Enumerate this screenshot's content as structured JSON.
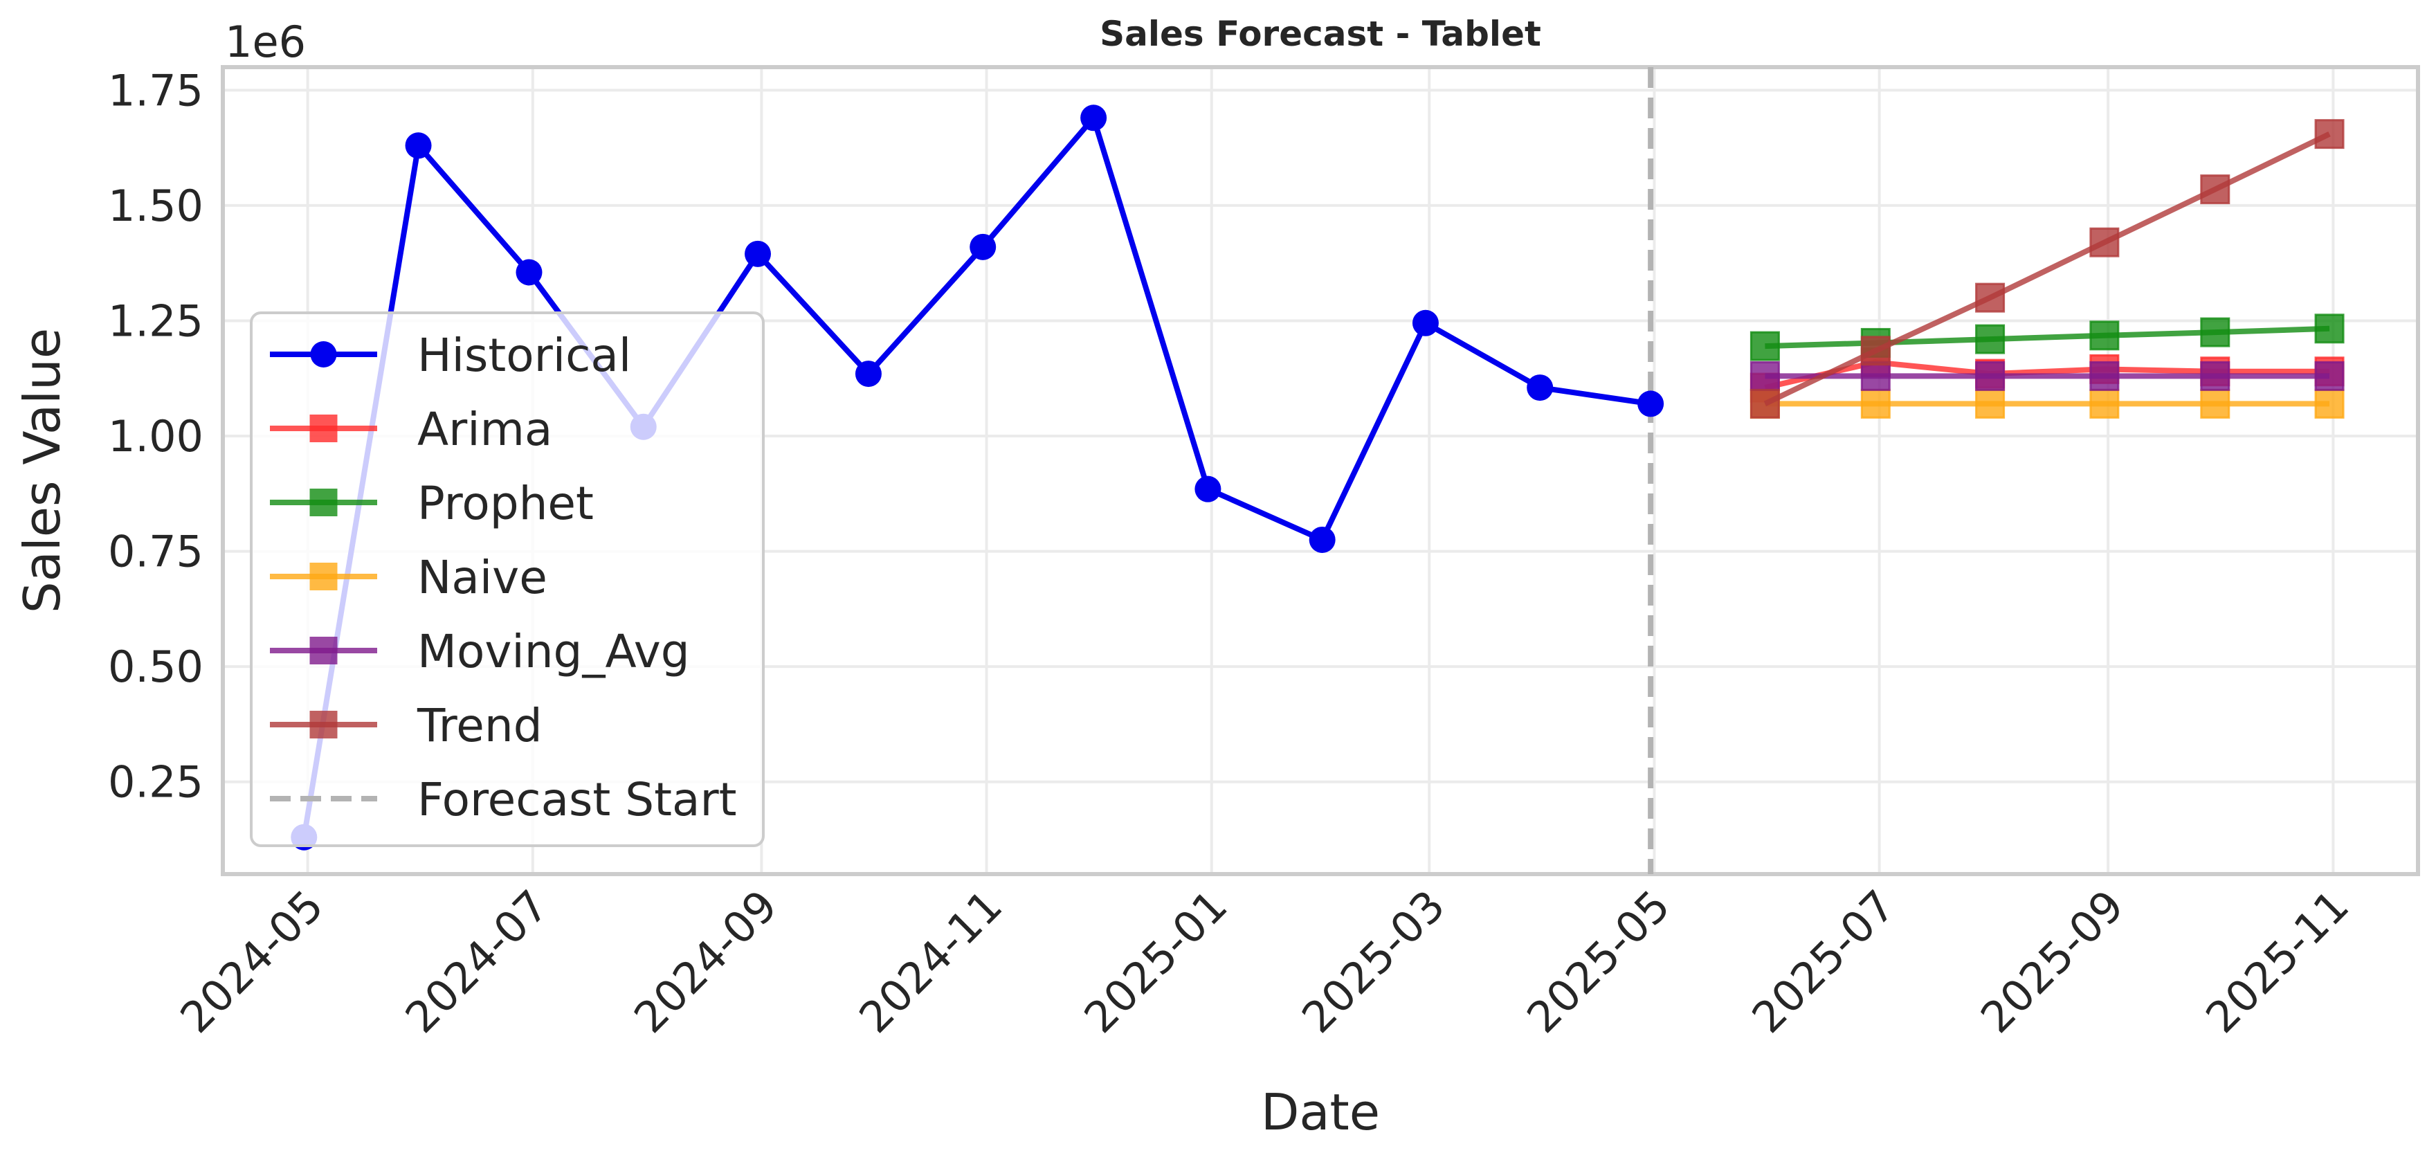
{
  "chart_data": {
    "type": "line",
    "title": "Sales Forecast - Tablet",
    "xlabel": "Date",
    "ylabel": "Sales Value",
    "y_scale_label": "1e6",
    "ylim": [
      0.05,
      1.8
    ],
    "xlim": [
      "2024-04-08",
      "2025-11-24"
    ],
    "x_ticks": [
      "2024-05",
      "2024-07",
      "2024-09",
      "2024-11",
      "2025-01",
      "2025-03",
      "2025-05",
      "2025-07",
      "2025-09",
      "2025-11"
    ],
    "y_ticks": [
      "0.25",
      "0.50",
      "0.75",
      "1.00",
      "1.25",
      "1.50",
      "1.75"
    ],
    "grid": true,
    "legend_position": "left",
    "forecast_start": "2025-04-30",
    "series": [
      {
        "name": "Historical",
        "color": "#0000ee",
        "marker": "circle",
        "x": [
          "2024-04-30",
          "2024-05-31",
          "2024-06-30",
          "2024-07-31",
          "2024-08-31",
          "2024-09-30",
          "2024-10-31",
          "2024-11-30",
          "2024-12-31",
          "2025-01-31",
          "2025-02-28",
          "2025-03-31",
          "2025-04-30"
        ],
        "y": [
          0.13,
          1.63,
          1.355,
          1.02,
          1.395,
          1.135,
          1.41,
          1.69,
          0.885,
          0.775,
          1.245,
          1.105,
          1.07
        ]
      },
      {
        "name": "Arima",
        "color": "#ff2a2a",
        "marker": "square",
        "x": [
          "2025-05-31",
          "2025-06-30",
          "2025-07-31",
          "2025-08-31",
          "2025-09-30",
          "2025-10-31"
        ],
        "y": [
          1.105,
          1.16,
          1.135,
          1.145,
          1.14,
          1.14
        ]
      },
      {
        "name": "Prophet",
        "color": "#128c12",
        "marker": "square",
        "x": [
          "2025-05-31",
          "2025-06-30",
          "2025-07-31",
          "2025-08-31",
          "2025-09-30",
          "2025-10-31"
        ],
        "y": [
          1.195,
          1.202,
          1.21,
          1.218,
          1.225,
          1.233
        ]
      },
      {
        "name": "Naive",
        "color": "#ffa914",
        "marker": "square",
        "x": [
          "2025-05-31",
          "2025-06-30",
          "2025-07-31",
          "2025-08-31",
          "2025-09-30",
          "2025-10-31"
        ],
        "y": [
          1.07,
          1.07,
          1.07,
          1.07,
          1.07,
          1.07
        ]
      },
      {
        "name": "Moving_Avg",
        "color": "#7f1a8c",
        "marker": "square",
        "x": [
          "2025-05-31",
          "2025-06-30",
          "2025-07-31",
          "2025-08-31",
          "2025-09-30",
          "2025-10-31"
        ],
        "y": [
          1.13,
          1.13,
          1.13,
          1.13,
          1.13,
          1.13
        ]
      },
      {
        "name": "Trend",
        "color": "#b03a3a",
        "marker": "square",
        "x": [
          "2025-05-31",
          "2025-06-30",
          "2025-07-31",
          "2025-08-31",
          "2025-09-30",
          "2025-10-31"
        ],
        "y": [
          1.07,
          1.185,
          1.3,
          1.42,
          1.535,
          1.655
        ]
      }
    ],
    "legend": [
      {
        "label": "Historical",
        "color": "#0000ee",
        "marker": "circle"
      },
      {
        "label": "Arima",
        "color": "#ff2a2a",
        "marker": "square"
      },
      {
        "label": "Prophet",
        "color": "#128c12",
        "marker": "square"
      },
      {
        "label": "Naive",
        "color": "#ffa914",
        "marker": "square"
      },
      {
        "label": "Moving_Avg",
        "color": "#7f1a8c",
        "marker": "square"
      },
      {
        "label": "Trend",
        "color": "#b03a3a",
        "marker": "square"
      },
      {
        "label": "Forecast Start",
        "color": "#b3b3b3",
        "marker": "dashed-line"
      }
    ]
  }
}
